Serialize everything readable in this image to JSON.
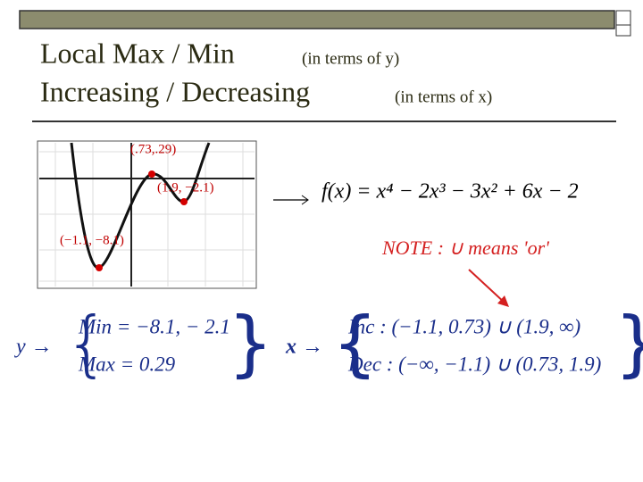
{
  "header": {
    "title_line1": "Local Max / Min",
    "note_line1": "(in terms of y)",
    "title_line2": "Increasing / Decreasing",
    "note_line2": "(in terms of x)"
  },
  "graph": {
    "labels": [
      "(.73,.29)",
      "(1.9, −2.1)",
      "(−1.1, −8.1)"
    ]
  },
  "function": "f(x) = x⁴ − 2x³ − 3x² + 6x − 2",
  "note": "NOTE : ∪ means 'or'",
  "y_summary": {
    "variable": "y →",
    "lines": [
      "Min = −8.1, − 2.1",
      "Max = 0.29"
    ]
  },
  "x_summary": {
    "variable": "x →",
    "lines": [
      "Inc : (−1.1, 0.73) ∪ (1.9, ∞)",
      "Dec : (−∞, −1.1) ∪ (0.73, 1.9)"
    ]
  }
}
